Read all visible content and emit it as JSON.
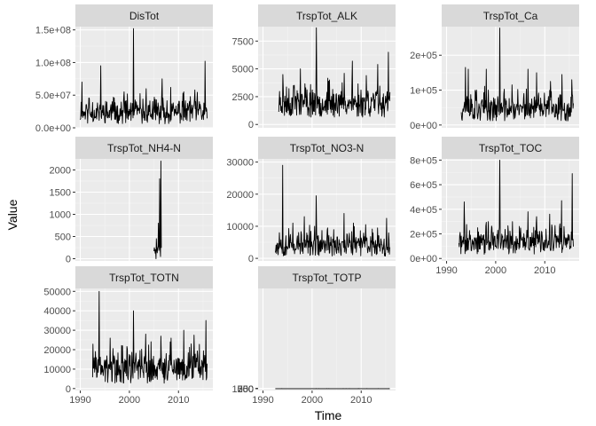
{
  "chart_data": {
    "type": "line",
    "layout": "facet-wrap-3-columns",
    "xlabel": "Time",
    "ylabel": "Value",
    "grid": true,
    "legend": "none",
    "colors": {
      "line": "#000000",
      "panel_bg": "#ebebeb",
      "strip_bg": "#d9d9d9",
      "grid_major": "#ffffff",
      "tick_text": "#4d4d4d"
    },
    "x_range": [
      1989,
      2017
    ],
    "panels": [
      {
        "title": "DisTot",
        "xlim": [
          1989,
          2017
        ],
        "ylim": [
          0,
          155000000
        ],
        "y_ticks": [
          0,
          50000000,
          100000000,
          150000000
        ],
        "y_tick_labels": [
          "0.0e+00",
          "5.0e+07",
          "1.0e+08",
          "1.5e+08"
        ],
        "x_tick_labels": [],
        "series": {
          "start": 1990.0,
          "end": 2015.9,
          "base": 18000000,
          "spread": 12000000,
          "min": 2000000,
          "seed": 11,
          "peaks": [
            [
              1990.3,
              70000000
            ],
            [
              1991.8,
              45000000
            ],
            [
              1994.2,
              95000000
            ],
            [
              1996.5,
              40000000
            ],
            [
              1998.9,
              55000000
            ],
            [
              2000.8,
              152000000
            ],
            [
              2003.4,
              60000000
            ],
            [
              2006.7,
              75000000
            ],
            [
              2008.4,
              62000000
            ],
            [
              2011.1,
              55000000
            ],
            [
              2013.3,
              58000000
            ],
            [
              2015.4,
              102000000
            ]
          ]
        }
      },
      {
        "title": "TrspTot_ALK",
        "xlim": [
          1989,
          2017
        ],
        "ylim": [
          -300,
          8800
        ],
        "y_ticks": [
          0,
          2500,
          5000,
          7500
        ],
        "y_tick_labels": [
          "0",
          "2500",
          "5000",
          "7500"
        ],
        "x_tick_labels": [],
        "series": {
          "start": 1993.2,
          "end": 2015.9,
          "base": 1500,
          "spread": 900,
          "min": 400,
          "seed": 23,
          "peaks": [
            [
              1994.0,
              4500
            ],
            [
              1996.2,
              3500
            ],
            [
              1997.6,
              5000
            ],
            [
              2000.9,
              8700
            ],
            [
              2003.5,
              4000
            ],
            [
              2006.5,
              4600
            ],
            [
              2008.2,
              5700
            ],
            [
              2011.0,
              4400
            ],
            [
              2013.4,
              5400
            ],
            [
              2015.5,
              6500
            ]
          ]
        }
      },
      {
        "title": "TrspTot_Ca",
        "xlim": [
          1989,
          2017
        ],
        "ylim": [
          -8000,
          282000
        ],
        "y_ticks": [
          0,
          100000,
          200000
        ],
        "y_tick_labels": [
          "0e+00",
          "1e+05",
          "2e+05"
        ],
        "x_tick_labels": [],
        "series": {
          "start": 1993.0,
          "end": 2015.9,
          "base": 35000,
          "spread": 25000,
          "min": 8000,
          "seed": 37,
          "peaks": [
            [
              1993.8,
              165000
            ],
            [
              1994.4,
              160000
            ],
            [
              1996.1,
              100000
            ],
            [
              1998.1,
              160000
            ],
            [
              2000.8,
              278000
            ],
            [
              2003.3,
              115000
            ],
            [
              2006.6,
              160000
            ],
            [
              2008.3,
              150000
            ],
            [
              2011.2,
              125000
            ],
            [
              2013.5,
              145000
            ],
            [
              2015.5,
              130000
            ]
          ]
        }
      },
      {
        "title": "TrspTot_NH4-N",
        "xlim": [
          1989,
          2017
        ],
        "ylim": [
          -50,
          2250
        ],
        "y_ticks": [
          0,
          500,
          1000,
          1500,
          2000
        ],
        "y_tick_labels": [
          "0",
          "500",
          "1000",
          "1500",
          "2000"
        ],
        "x_tick_labels": [],
        "series": {
          "start": 2005.0,
          "end": 2006.5,
          "base": 120,
          "spread": 150,
          "min": 0,
          "seed": 5,
          "peaks": [
            [
              2005.5,
              450
            ],
            [
              2005.9,
              800
            ],
            [
              2006.2,
              1800
            ],
            [
              2006.4,
              2200
            ]
          ]
        }
      },
      {
        "title": "TrspTot_NO3-N",
        "xlim": [
          1989,
          2017
        ],
        "ylim": [
          -800,
          31000
        ],
        "y_ticks": [
          0,
          10000,
          20000,
          30000
        ],
        "y_tick_labels": [
          "0",
          "10000",
          "20000",
          "30000"
        ],
        "x_tick_labels": [],
        "series": {
          "start": 1992.5,
          "end": 2015.9,
          "base": 3000,
          "spread": 2500,
          "min": 300,
          "seed": 53,
          "peaks": [
            [
              1993.3,
              8000
            ],
            [
              1994.0,
              29000
            ],
            [
              1996.1,
              11000
            ],
            [
              1998.4,
              13000
            ],
            [
              2000.8,
              19500
            ],
            [
              2003.2,
              9500
            ],
            [
              2006.5,
              14000
            ],
            [
              2008.4,
              11000
            ],
            [
              2010.9,
              10500
            ],
            [
              2013.3,
              9500
            ],
            [
              2015.2,
              12500
            ]
          ]
        }
      },
      {
        "title": "TrspTot_TOC",
        "xlim": [
          1989,
          2017
        ],
        "ylim": [
          -20000,
          810000
        ],
        "y_ticks": [
          0,
          200000,
          400000,
          600000,
          800000
        ],
        "y_tick_labels": [
          "0e+00",
          "2e+05",
          "4e+05",
          "6e+05",
          "8e+05"
        ],
        "x_tick_labels": [
          "1990",
          "2000",
          "2010"
        ],
        "series": {
          "start": 1992.5,
          "end": 2015.9,
          "base": 100000,
          "spread": 70000,
          "min": 20000,
          "seed": 71,
          "peaks": [
            [
              1993.6,
              460000
            ],
            [
              1996.3,
              250000
            ],
            [
              1998.5,
              300000
            ],
            [
              2000.8,
              800000
            ],
            [
              2003.4,
              300000
            ],
            [
              2006.6,
              380000
            ],
            [
              2008.3,
              340000
            ],
            [
              2011.0,
              360000
            ],
            [
              2013.4,
              470000
            ],
            [
              2015.6,
              690000
            ]
          ]
        }
      },
      {
        "title": "TrspTot_TOTN",
        "xlim": [
          1989,
          2017
        ],
        "ylim": [
          -1000,
          51500
        ],
        "y_ticks": [
          0,
          10000,
          20000,
          30000,
          40000,
          50000
        ],
        "y_tick_labels": [
          "0",
          "10000",
          "20000",
          "30000",
          "40000",
          "50000"
        ],
        "x_tick_labels": [
          "1990",
          "2000",
          "2010"
        ],
        "series": {
          "start": 1992.5,
          "end": 2015.9,
          "base": 8000,
          "spread": 6000,
          "min": 1500,
          "seed": 89,
          "peaks": [
            [
              1993.8,
              50000
            ],
            [
              1996.1,
              26000
            ],
            [
              1998.6,
              22000
            ],
            [
              2000.8,
              40000
            ],
            [
              2003.3,
              28000
            ],
            [
              2006.4,
              27000
            ],
            [
              2008.5,
              26000
            ],
            [
              2011.1,
              30000
            ],
            [
              2013.2,
              27500
            ],
            [
              2015.6,
              35000
            ]
          ]
        }
      },
      {
        "title": "TrspTot_TOTP",
        "xlim": [
          1989,
          2017
        ],
        "ylim": [
          -20000,
          1070000
        ],
        "y_ticks": [
          0,
          250,
          500,
          750,
          1000
        ],
        "y_tick_labels": [
          "0",
          "250",
          "500",
          "750",
          "1000"
        ],
        "x_tick_labels": [
          "1990",
          "2000",
          "2010"
        ],
        "series": {
          "start": 1992.5,
          "end": 2015.9,
          "base": 120,
          "spread": 90,
          "min": 20,
          "seed": 97,
          "peaks": [
            [
              1993.8,
              600
            ],
            [
              1996.0,
              250
            ],
            [
              1998.7,
              350
            ],
            [
              2000.8,
              1030
            ],
            [
              2003.4,
              380
            ],
            [
              2006.3,
              720
            ],
            [
              2007.6,
              740
            ],
            [
              2009.4,
              600
            ],
            [
              2011.2,
              570
            ],
            [
              2013.5,
              750
            ],
            [
              2015.6,
              740
            ]
          ]
        }
      }
    ]
  }
}
